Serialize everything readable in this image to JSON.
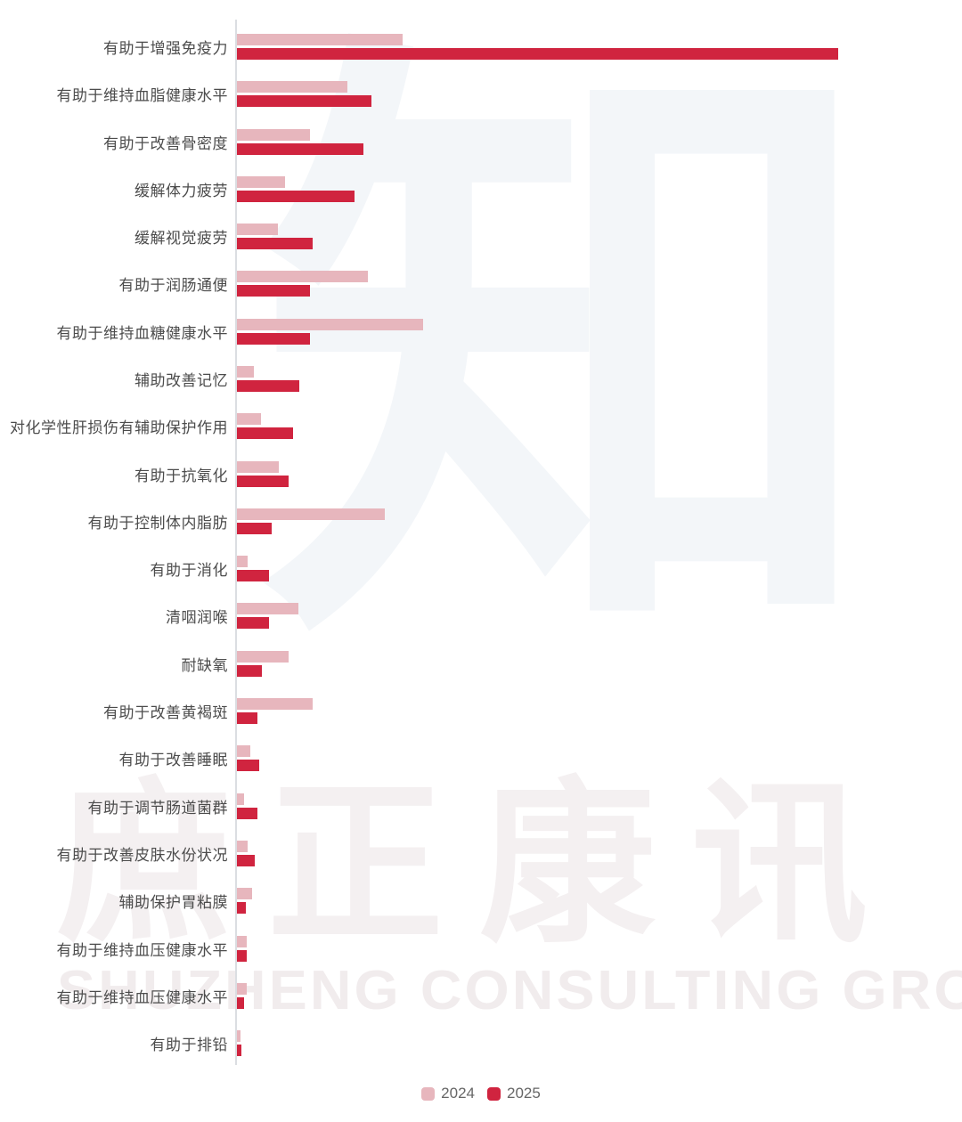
{
  "chart_data": {
    "type": "bar",
    "orientation": "horizontal",
    "title": "",
    "xlabel": "",
    "ylabel": "",
    "grid": false,
    "axis_numbers_visible": false,
    "value_unit": "estimated bar length in screen px (no numeric axis shown)",
    "max_value": 675,
    "legend_position": "bottom-center",
    "categories": [
      "有助于增强免疫力",
      "有助于维持血脂健康水平",
      "有助于改善骨密度",
      "缓解体力疲劳",
      "缓解视觉疲劳",
      "有助于润肠通便",
      "有助于维持血糖健康水平",
      "辅助改善记忆",
      "对化学性肝损伤有辅助保护作用",
      "有助于抗氧化",
      "有助于控制体内脂肪",
      "有助于消化",
      "清咽润喉",
      "耐缺氧",
      "有助于改善黄褐斑",
      "有助于改善睡眠",
      "有助于调节肠道菌群",
      "有助于改善皮肤水份状况",
      "辅助保护胃粘膜",
      "有助于维持血压健康水平",
      "有助于维持血压健康水平",
      "有助于排铅"
    ],
    "series": [
      {
        "name": "2024",
        "color": "#E7B6BD",
        "values": [
          186,
          124,
          82,
          54,
          46,
          147,
          209,
          19,
          27,
          47,
          166,
          12,
          69,
          58,
          85,
          15,
          8,
          12,
          17,
          11,
          11,
          4
        ]
      },
      {
        "name": "2025",
        "color": "#D0243F",
        "values": [
          675,
          151,
          142,
          132,
          85,
          82,
          82,
          70,
          63,
          58,
          39,
          36,
          36,
          28,
          23,
          25,
          23,
          20,
          10,
          11,
          8,
          5
        ]
      }
    ]
  },
  "legend": {
    "items": [
      {
        "label": "2024",
        "color": "#E7B6BD"
      },
      {
        "label": "2025",
        "color": "#D0243F"
      }
    ]
  },
  "watermark": {
    "glyph": "知",
    "cn_text": "庶正康讯",
    "en_text": "SHUZHENG CONSULTING GROUP"
  },
  "layout": {
    "first_row_top": 38,
    "row_pitch": 53.29
  }
}
